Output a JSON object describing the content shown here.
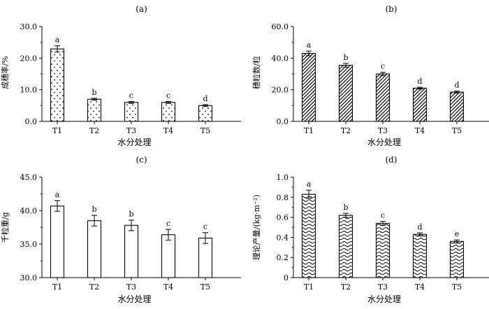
{
  "chart_data": [
    {
      "type": "bar",
      "title": "(a)",
      "categories": [
        "T1",
        "T2",
        "T3",
        "T4",
        "T5"
      ],
      "values": [
        22.9,
        7.0,
        6.0,
        6.0,
        5.0
      ],
      "errors": [
        1.0,
        0.3,
        0.3,
        0.3,
        0.3
      ],
      "significance": [
        "a",
        "b",
        "c",
        "c",
        "d"
      ],
      "xlabel": "水分处理",
      "ylabel": "成穗率/%",
      "ylim": [
        0,
        30
      ],
      "yticks": [
        "0.0",
        "10.0",
        "20.0",
        "30.0"
      ],
      "pattern": "dots"
    },
    {
      "type": "bar",
      "title": "(b)",
      "categories": [
        "T1",
        "T2",
        "T3",
        "T4",
        "T5"
      ],
      "values": [
        43.0,
        35.5,
        30.0,
        21.0,
        18.5
      ],
      "errors": [
        1.5,
        1.2,
        1.0,
        0.6,
        0.6
      ],
      "significance": [
        "a",
        "b",
        "c",
        "d",
        "d"
      ],
      "xlabel": "水分处理",
      "ylabel": "穗粒数/粒",
      "ylim": [
        0,
        60
      ],
      "yticks": [
        "0.0",
        "20.0",
        "40.0",
        "60.0"
      ],
      "pattern": "hatch"
    },
    {
      "type": "bar",
      "title": "(c)",
      "categories": [
        "T1",
        "T2",
        "T3",
        "T4",
        "T5"
      ],
      "values": [
        40.7,
        38.5,
        37.8,
        36.4,
        35.9
      ],
      "errors": [
        0.8,
        0.8,
        0.8,
        0.8,
        0.8
      ],
      "significance": [
        "a",
        "b",
        "b",
        "c",
        "c"
      ],
      "xlabel": "水分处理",
      "ylabel": "千粒重/g",
      "ylim": [
        30,
        45
      ],
      "yticks": [
        "30.0",
        "35.0",
        "40.0",
        "45.0"
      ],
      "pattern": "none"
    },
    {
      "type": "bar",
      "title": "(d)",
      "categories": [
        "T1",
        "T2",
        "T3",
        "T4",
        "T5"
      ],
      "values": [
        0.83,
        0.62,
        0.54,
        0.43,
        0.36
      ],
      "errors": [
        0.04,
        0.02,
        0.02,
        0.015,
        0.015
      ],
      "significance": [
        "a",
        "b",
        "c",
        "d",
        "e"
      ],
      "xlabel": "水分处理",
      "ylabel": "理论产量/(kg·m⁻²)",
      "ylim": [
        0,
        1.0
      ],
      "yticks": [
        "0",
        "0.2",
        "0.4",
        "0.6",
        "0.8",
        "1.0"
      ],
      "pattern": "wave"
    }
  ]
}
